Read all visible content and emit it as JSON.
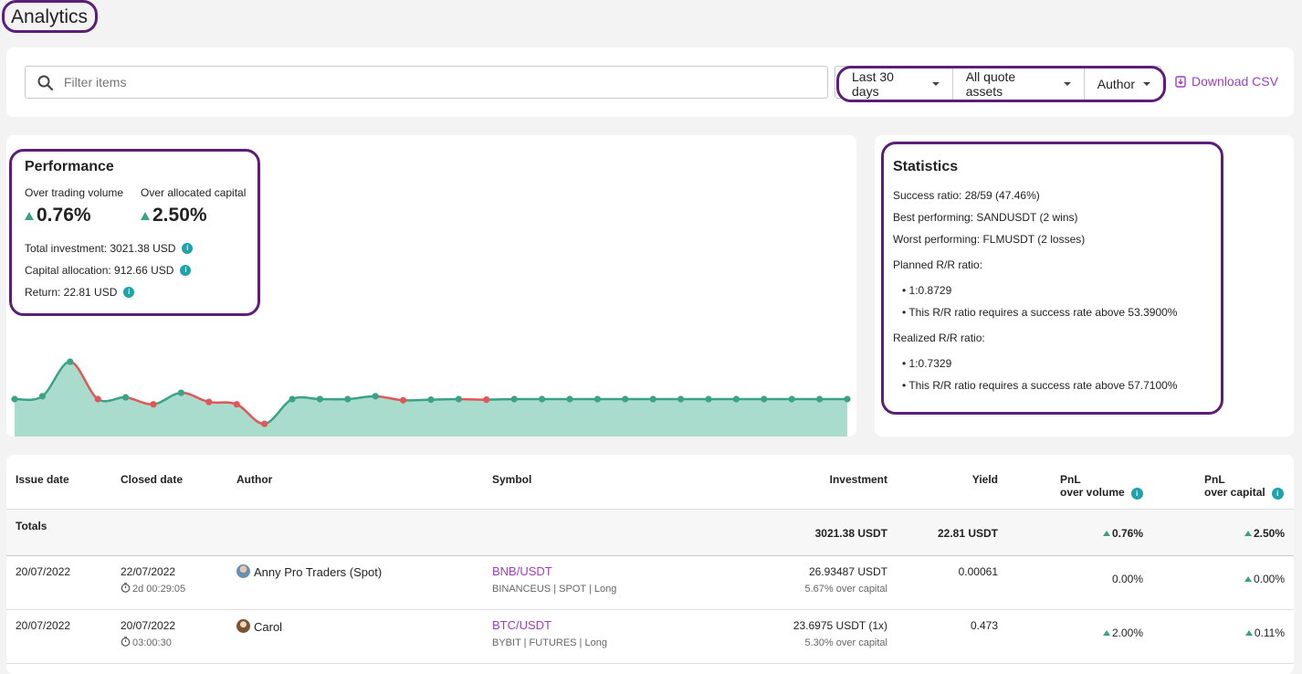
{
  "page": {
    "title": "Analytics"
  },
  "filters": {
    "search_placeholder": "Filter items",
    "period": "Last 30 days",
    "quote_assets": "All quote assets",
    "author": "Author",
    "download": "Download CSV"
  },
  "performance": {
    "title": "Performance",
    "trading_volume_label": "Over trading volume",
    "trading_volume_value": "0.76%",
    "allocated_capital_label": "Over allocated capital",
    "allocated_capital_value": "2.50%",
    "total_investment": "Total investment: 3021.38 USD",
    "capital_allocation": "Capital allocation: 912.66 USD",
    "return": "Return: 22.81 USD",
    "series": [
      0,
      0.5,
      6.5,
      0,
      0.3,
      -0.9,
      1.1,
      -0.5,
      -0.9,
      -4.3,
      0,
      0,
      0,
      0.5,
      -0.2,
      -0.1,
      0,
      -0.1,
      0,
      0,
      0,
      0,
      0,
      0,
      0,
      0,
      0,
      0,
      0,
      0,
      0
    ]
  },
  "statistics": {
    "title": "Statistics",
    "success_ratio": "Success ratio: 28/59 (47.46%)",
    "best": "Best performing: SANDUSDT (2 wins)",
    "worst": "Worst performing: FLMUSDT (2 losses)",
    "planned_label": "Planned R/R ratio:",
    "planned_ratio": "• 1:0.8729",
    "planned_note": "• This R/R ratio requires a success rate above 53.3900%",
    "realized_label": "Realized R/R ratio:",
    "realized_ratio": "• 1:0.7329",
    "realized_note": "• This R/R ratio requires a success rate above 57.7100%"
  },
  "table": {
    "headers": {
      "issue_date": "Issue date",
      "closed_date": "Closed date",
      "author": "Author",
      "symbol": "Symbol",
      "investment": "Investment",
      "yield": "Yield",
      "pnl_volume_1": "PnL",
      "pnl_volume_2": "over volume",
      "pnl_capital_1": "PnL",
      "pnl_capital_2": "over capital"
    },
    "totals": {
      "label": "Totals",
      "investment": "3021.38 USDT",
      "yield": "22.81 USDT",
      "pnl_volume": "0.76%",
      "pnl_capital": "2.50%"
    },
    "rows": [
      {
        "issue_date": "20/07/2022",
        "closed_date": "22/07/2022",
        "duration": "2d 00:29:05",
        "author": "Anny Pro Traders (Spot)",
        "symbol": "BNB/USDT",
        "symbol_meta": "BINANCEUS | SPOT | Long",
        "investment": "26.93487 USDT",
        "investment_sub": "5.67% over capital",
        "yield": "0.00061",
        "pnl_volume": "0.00%",
        "pnl_capital": "0.00%"
      },
      {
        "issue_date": "20/07/2022",
        "closed_date": "20/07/2022",
        "duration": "03:00:30",
        "author": "Carol",
        "symbol": "BTC/USDT",
        "symbol_meta": "BYBIT | FUTURES | Long",
        "investment": "23.6975 USDT (1x)",
        "investment_sub": "5.30% over capital",
        "yield": "0.473",
        "pnl_volume": "2.00%",
        "pnl_capital": "0.11%"
      }
    ]
  },
  "colors": {
    "accent": "#9c3fbf",
    "positive": "#3aa387",
    "negative": "#e05757",
    "highlight": "#5b1f7a",
    "info": "#1fa3a8"
  }
}
